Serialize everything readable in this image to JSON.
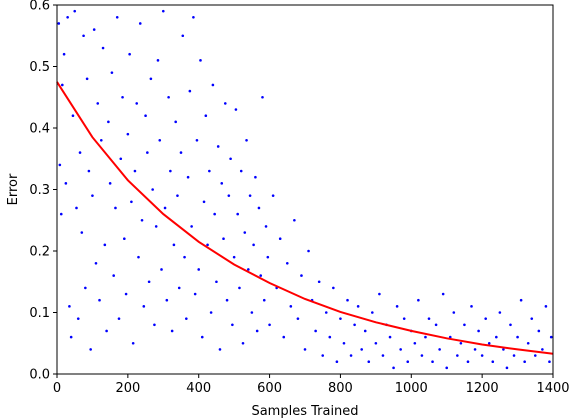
{
  "chart_data": {
    "type": "scatter",
    "title": "",
    "xlabel": "Samples Trained",
    "ylabel": "Error",
    "xlim": [
      0,
      1400
    ],
    "ylim": [
      0,
      0.6
    ],
    "xticks": [
      "0",
      "200",
      "400",
      "600",
      "800",
      "1000",
      "1200",
      "1400"
    ],
    "yticks": [
      "0.0",
      "0.1",
      "0.2",
      "0.3",
      "0.4",
      "0.5",
      "0.6"
    ],
    "grid": false,
    "legend": "none",
    "colors": {
      "points": "#0000ff",
      "curve": "#ff0000"
    },
    "series": [
      {
        "type": "scatter",
        "x": [
          5,
          8,
          12,
          15,
          20,
          25,
          30,
          35,
          40,
          45,
          50,
          55,
          60,
          65,
          70,
          75,
          80,
          85,
          90,
          95,
          100,
          105,
          110,
          115,
          120,
          125,
          130,
          135,
          140,
          145,
          150,
          155,
          160,
          165,
          170,
          175,
          180,
          185,
          190,
          195,
          200,
          205,
          210,
          215,
          220,
          225,
          230,
          235,
          240,
          245,
          250,
          255,
          260,
          265,
          270,
          275,
          280,
          285,
          290,
          295,
          300,
          305,
          310,
          315,
          320,
          325,
          330,
          335,
          340,
          345,
          350,
          355,
          360,
          365,
          370,
          375,
          380,
          385,
          390,
          395,
          400,
          405,
          410,
          415,
          420,
          425,
          430,
          435,
          440,
          445,
          450,
          455,
          460,
          465,
          470,
          475,
          480,
          485,
          490,
          495,
          500,
          505,
          510,
          515,
          520,
          525,
          530,
          535,
          540,
          545,
          550,
          555,
          560,
          565,
          570,
          575,
          580,
          585,
          590,
          595,
          600,
          610,
          620,
          630,
          640,
          650,
          660,
          670,
          680,
          690,
          700,
          710,
          720,
          730,
          740,
          750,
          760,
          770,
          780,
          790,
          800,
          810,
          820,
          830,
          840,
          850,
          860,
          870,
          880,
          890,
          900,
          910,
          920,
          930,
          940,
          950,
          960,
          970,
          980,
          990,
          1000,
          1010,
          1020,
          1030,
          1040,
          1050,
          1060,
          1070,
          1080,
          1090,
          1100,
          1110,
          1120,
          1130,
          1140,
          1150,
          1160,
          1170,
          1180,
          1190,
          1200,
          1210,
          1220,
          1230,
          1240,
          1250,
          1260,
          1270,
          1280,
          1290,
          1300,
          1310,
          1320,
          1330,
          1340,
          1350,
          1360,
          1370,
          1380,
          1390,
          1395
        ],
        "y": [
          0.57,
          0.34,
          0.26,
          0.47,
          0.52,
          0.31,
          0.58,
          0.11,
          0.06,
          0.42,
          0.59,
          0.27,
          0.09,
          0.36,
          0.23,
          0.55,
          0.14,
          0.48,
          0.33,
          0.04,
          0.29,
          0.56,
          0.18,
          0.44,
          0.12,
          0.38,
          0.53,
          0.21,
          0.07,
          0.41,
          0.31,
          0.49,
          0.16,
          0.27,
          0.58,
          0.09,
          0.35,
          0.45,
          0.22,
          0.13,
          0.39,
          0.52,
          0.28,
          0.05,
          0.33,
          0.44,
          0.19,
          0.57,
          0.25,
          0.11,
          0.42,
          0.36,
          0.15,
          0.48,
          0.3,
          0.08,
          0.24,
          0.51,
          0.38,
          0.17,
          0.59,
          0.27,
          0.12,
          0.45,
          0.33,
          0.07,
          0.21,
          0.41,
          0.29,
          0.14,
          0.36,
          0.55,
          0.19,
          0.09,
          0.32,
          0.46,
          0.24,
          0.58,
          0.13,
          0.38,
          0.17,
          0.51,
          0.06,
          0.28,
          0.42,
          0.21,
          0.33,
          0.1,
          0.47,
          0.26,
          0.15,
          0.37,
          0.04,
          0.31,
          0.22,
          0.44,
          0.12,
          0.29,
          0.35,
          0.08,
          0.19,
          0.43,
          0.26,
          0.14,
          0.33,
          0.05,
          0.23,
          0.38,
          0.17,
          0.29,
          0.1,
          0.21,
          0.32,
          0.07,
          0.27,
          0.16,
          0.45,
          0.12,
          0.24,
          0.19,
          0.08,
          0.29,
          0.14,
          0.22,
          0.06,
          0.18,
          0.11,
          0.25,
          0.09,
          0.16,
          0.04,
          0.2,
          0.12,
          0.07,
          0.15,
          0.03,
          0.1,
          0.06,
          0.14,
          0.02,
          0.09,
          0.05,
          0.12,
          0.03,
          0.08,
          0.11,
          0.04,
          0.07,
          0.02,
          0.1,
          0.05,
          0.13,
          0.03,
          0.08,
          0.06,
          0.01,
          0.11,
          0.04,
          0.09,
          0.02,
          0.07,
          0.05,
          0.12,
          0.03,
          0.06,
          0.09,
          0.02,
          0.08,
          0.04,
          0.13,
          0.01,
          0.06,
          0.1,
          0.03,
          0.05,
          0.08,
          0.02,
          0.11,
          0.04,
          0.07,
          0.03,
          0.09,
          0.05,
          0.02,
          0.06,
          0.1,
          0.04,
          0.01,
          0.08,
          0.03,
          0.06,
          0.12,
          0.02,
          0.05,
          0.09,
          0.03,
          0.07,
          0.04,
          0.11,
          0.02,
          0.06
        ]
      },
      {
        "type": "line",
        "x": [
          0,
          100,
          200,
          300,
          400,
          500,
          600,
          700,
          800,
          900,
          1000,
          1100,
          1200,
          1300,
          1400
        ],
        "y": [
          0.475,
          0.385,
          0.315,
          0.26,
          0.215,
          0.178,
          0.148,
          0.122,
          0.101,
          0.084,
          0.07,
          0.058,
          0.048,
          0.04,
          0.033
        ]
      }
    ]
  }
}
